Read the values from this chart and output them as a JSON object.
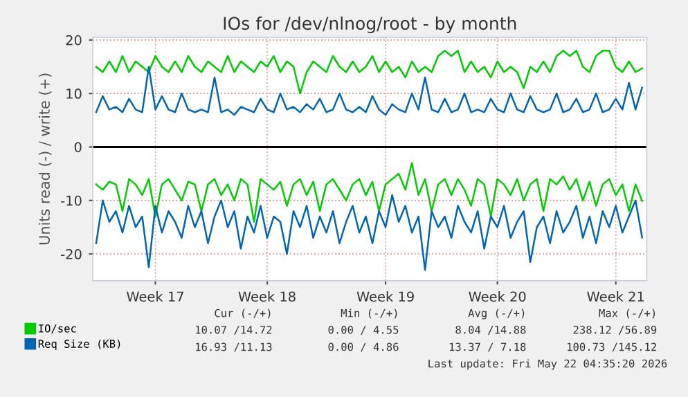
{
  "chart_data": {
    "type": "line",
    "title": "IOs for /dev/nlnog/root - by month",
    "ylabel": "Units read (-) / write (+)",
    "categories": [
      null,
      null,
      null,
      null,
      null,
      null,
      null,
      null,
      null,
      "Week 17",
      null,
      null,
      null,
      null,
      null,
      null,
      null,
      null,
      null,
      null,
      null,
      null,
      null,
      null,
      null,
      null,
      "Week 18",
      null,
      null,
      null,
      null,
      null,
      null,
      null,
      null,
      null,
      null,
      null,
      null,
      null,
      null,
      null,
      null,
      null,
      "Week 19",
      null,
      null,
      null,
      null,
      null,
      null,
      null,
      null,
      null,
      null,
      null,
      null,
      null,
      null,
      null,
      null,
      "Week 20",
      null,
      null,
      null,
      null,
      null,
      null,
      null,
      null,
      null,
      null,
      null,
      null,
      null,
      null,
      null,
      null,
      null,
      "Week 21",
      null,
      null,
      null,
      null
    ],
    "series": [
      {
        "name": "IO/sec",
        "color": "#00cc00",
        "values": [
          15,
          14,
          16,
          14,
          17,
          14,
          16,
          15,
          14,
          17,
          15,
          14,
          16,
          14,
          17,
          15,
          14,
          16,
          15,
          14,
          17,
          14,
          16,
          15,
          14,
          16,
          15,
          17,
          14,
          16,
          15,
          10,
          14,
          16,
          15,
          14,
          17,
          15,
          14,
          16,
          14,
          15,
          17,
          14,
          16,
          14,
          15,
          13,
          16,
          14,
          15,
          14,
          17,
          18,
          17,
          18,
          14,
          16,
          14,
          15,
          13,
          16,
          14,
          15,
          14,
          11,
          15,
          14,
          16,
          14,
          17,
          18,
          17,
          18,
          15,
          14,
          17,
          18,
          18,
          15,
          14,
          16,
          14,
          14.7
        ]
      },
      {
        "color": "#00cc00",
        "values": [
          -7,
          -8,
          -6.5,
          -7,
          -12,
          -6,
          -7,
          -9,
          -6,
          -13,
          -7,
          -6,
          -8,
          -10,
          -6.5,
          -7,
          -12,
          -7,
          -6,
          -9,
          -7,
          -10,
          -6,
          -7,
          -14,
          -6,
          -7,
          -8,
          -6.5,
          -11,
          -7,
          -6,
          -9,
          -6.5,
          -12,
          -7,
          -6,
          -8,
          -10,
          -7,
          -6,
          -9,
          -6.5,
          -12,
          -7,
          -6,
          -5,
          -8,
          -3,
          -9,
          -6,
          -12,
          -7,
          -6,
          -9,
          -6,
          -8,
          -11,
          -6,
          -7,
          -13,
          -6,
          -7,
          -9,
          -6,
          -10,
          -7,
          -6,
          -12,
          -6,
          -7,
          -5.5,
          -8,
          -6,
          -10,
          -6.5,
          -11,
          -7,
          -6,
          -9,
          -7,
          -12,
          -7,
          -10.1
        ]
      },
      {
        "name": "Req Size (KB)",
        "color": "#0066b3",
        "values": [
          6.5,
          9.5,
          7,
          7.5,
          6.5,
          9,
          7,
          6.5,
          15,
          7,
          9.5,
          7,
          6.5,
          10,
          7,
          6.5,
          7,
          6.5,
          13,
          6.5,
          7,
          6,
          7.5,
          7,
          6.5,
          9,
          7,
          6.5,
          10,
          7,
          7.5,
          6.5,
          8,
          7,
          9,
          6.5,
          7,
          10,
          7,
          6.5,
          7.5,
          6.5,
          9.5,
          7,
          6,
          8,
          7,
          6.5,
          10,
          7,
          13,
          7,
          6.5,
          9,
          6.5,
          7,
          10,
          6.5,
          7,
          6.5,
          9,
          7,
          6.5,
          10,
          7,
          6.5,
          9.5,
          7,
          6.5,
          7,
          10,
          6.5,
          7,
          9,
          6.5,
          7,
          10,
          6.5,
          7,
          9,
          7,
          12,
          7,
          11.1
        ]
      },
      {
        "color": "#0066b3",
        "values": [
          -18,
          -10,
          -14,
          -12,
          -16,
          -11,
          -15,
          -13,
          -22.5,
          -11,
          -16,
          -12,
          -14,
          -17,
          -11,
          -15,
          -12,
          -18,
          -13,
          -10,
          -15,
          -12,
          -19,
          -13,
          -16,
          -11,
          -17,
          -13,
          -14,
          -20,
          -12,
          -15,
          -11,
          -17,
          -13,
          -16,
          -12,
          -18,
          -14,
          -11,
          -16,
          -13,
          -18,
          -12,
          -15,
          -9,
          -14,
          -11,
          -16,
          -13,
          -23,
          -12,
          -15,
          -13,
          -17,
          -11,
          -14,
          -16,
          -12,
          -19,
          -13,
          -15,
          -11,
          -17,
          -14,
          -12,
          -21.5,
          -15,
          -13,
          -18,
          -12,
          -16,
          -14,
          -11,
          -17,
          -13,
          -18,
          -12,
          -15,
          -11,
          -16,
          -13,
          -10,
          -16.9
        ]
      }
    ],
    "ylim": [
      -25,
      20.5
    ],
    "yticks": [
      -20,
      -10,
      0,
      10,
      20
    ],
    "ref_lines": [
      {
        "axis": "y",
        "value": 0,
        "color": "#000000"
      }
    ],
    "grid": true,
    "legend": "bottom",
    "marker": "none",
    "line_style": "solid",
    "annotations": [
      "Cur (-/+)",
      "Min (-/+)",
      "Avg (-/+)",
      "Max (-/+)",
      "10.07 /14.72",
      "0.00 / 4.55",
      "8.04 /14.88",
      "238.12 /56.89",
      "16.93 /11.13",
      "0.00 / 4.86",
      "13.37 / 7.18",
      "100.73 /145.12",
      "Last update: Fri May 22 04:35:20 2026"
    ]
  }
}
